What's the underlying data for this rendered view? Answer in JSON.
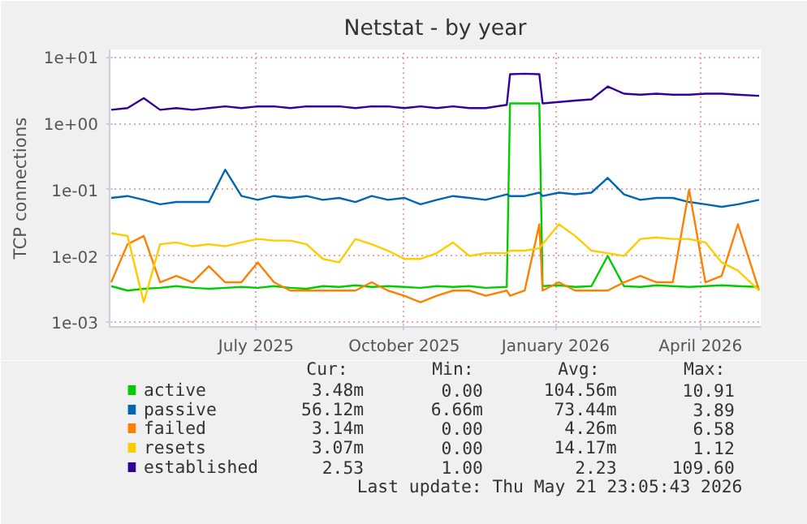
{
  "chart_data": {
    "type": "line",
    "title": "Netstat - by year",
    "ylabel": "TCP connections",
    "x": [
      "2025-04-17",
      "2025-04-27",
      "2025-05-07",
      "2025-05-17",
      "2025-05-27",
      "2025-06-06",
      "2025-06-16",
      "2025-06-26",
      "2025-07-06",
      "2025-07-16",
      "2025-07-26",
      "2025-08-05",
      "2025-08-15",
      "2025-08-25",
      "2025-09-04",
      "2025-09-14",
      "2025-09-24",
      "2025-10-04",
      "2025-10-14",
      "2025-10-24",
      "2025-11-03",
      "2025-11-13",
      "2025-11-23",
      "2025-12-03",
      "2025-12-16",
      "2025-12-18",
      "2025-12-27",
      "2026-01-05",
      "2026-01-07",
      "2026-01-17",
      "2026-01-27",
      "2026-02-06",
      "2026-02-16",
      "2026-02-26",
      "2026-03-08",
      "2026-03-18",
      "2026-03-28",
      "2026-04-07",
      "2026-04-17",
      "2026-04-27",
      "2026-05-07",
      "2026-05-20"
    ],
    "series": [
      {
        "name": "active",
        "color": "#00cc00",
        "values": [
          0.0035,
          0.003,
          0.0032,
          0.0033,
          0.0035,
          0.0033,
          0.0032,
          0.0033,
          0.0034,
          0.0033,
          0.0035,
          0.0033,
          0.0032,
          0.0035,
          0.0034,
          0.0036,
          0.0034,
          0.0035,
          0.0034,
          0.0033,
          0.0035,
          0.0034,
          0.0035,
          0.0033,
          0.0034,
          2.0,
          2.0,
          2.0,
          0.0035,
          0.0036,
          0.0034,
          0.0035,
          0.01,
          0.0035,
          0.0034,
          0.0036,
          0.0035,
          0.0034,
          0.0035,
          0.0036,
          0.0035,
          0.0034
        ]
      },
      {
        "name": "passive",
        "color": "#0066b3",
        "values": [
          0.075,
          0.08,
          0.07,
          0.06,
          0.065,
          0.065,
          0.065,
          0.2,
          0.08,
          0.07,
          0.08,
          0.075,
          0.08,
          0.07,
          0.075,
          0.065,
          0.08,
          0.07,
          0.075,
          0.06,
          0.07,
          0.08,
          0.075,
          0.07,
          0.085,
          0.08,
          0.08,
          0.09,
          0.08,
          0.09,
          0.085,
          0.09,
          0.15,
          0.085,
          0.07,
          0.075,
          0.075,
          0.065,
          0.06,
          0.055,
          0.06,
          0.07
        ]
      },
      {
        "name": "failed",
        "color": "#ff8000",
        "values": [
          0.004,
          0.015,
          0.02,
          0.004,
          0.005,
          0.004,
          0.007,
          0.004,
          0.004,
          0.008,
          0.004,
          0.003,
          0.003,
          0.003,
          0.003,
          0.003,
          0.004,
          0.003,
          0.0025,
          0.002,
          0.0025,
          0.003,
          0.003,
          0.0025,
          0.003,
          0.0025,
          0.003,
          0.03,
          0.003,
          0.004,
          0.003,
          0.003,
          0.003,
          0.004,
          0.005,
          0.004,
          0.004,
          0.1,
          0.004,
          0.005,
          0.03,
          0.003
        ]
      },
      {
        "name": "resets",
        "color": "#ffcc00",
        "values": [
          0.022,
          0.02,
          0.002,
          0.015,
          0.016,
          0.014,
          0.015,
          0.014,
          0.016,
          0.018,
          0.017,
          0.017,
          0.015,
          0.009,
          0.008,
          0.018,
          0.015,
          0.012,
          0.009,
          0.009,
          0.011,
          0.016,
          0.01,
          0.011,
          0.011,
          0.012,
          0.012,
          0.013,
          0.015,
          0.03,
          0.02,
          0.012,
          0.011,
          0.01,
          0.018,
          0.019,
          0.018,
          0.018,
          0.016,
          0.008,
          0.006,
          0.003
        ]
      },
      {
        "name": "established",
        "color": "#330099",
        "values": [
          1.6,
          1.7,
          2.4,
          1.6,
          1.7,
          1.6,
          1.7,
          1.8,
          1.7,
          1.8,
          1.8,
          1.7,
          1.8,
          1.8,
          1.8,
          1.7,
          1.8,
          1.8,
          1.7,
          1.8,
          1.7,
          1.8,
          1.7,
          1.7,
          1.9,
          5.5,
          5.6,
          5.5,
          2.0,
          2.1,
          2.2,
          2.3,
          3.6,
          2.8,
          2.7,
          2.8,
          2.7,
          2.7,
          2.8,
          2.8,
          2.7,
          2.6
        ]
      }
    ],
    "xlim": [
      "2025-04-16",
      "2026-05-21"
    ],
    "xticks": [
      {
        "value": "2025-07-15",
        "label": "July 2025"
      },
      {
        "value": "2025-10-14",
        "label": "October 2025"
      },
      {
        "value": "2026-01-15",
        "label": "January 2026"
      },
      {
        "value": "2026-04-14",
        "label": "April 2026"
      }
    ],
    "ylim": [
      0.00085,
      13
    ],
    "yticks": [
      {
        "value": 0.001,
        "label": "1e-03"
      },
      {
        "value": 0.01,
        "label": "1e-02"
      },
      {
        "value": 0.1,
        "label": "1e-01"
      },
      {
        "value": 1,
        "label": "1e+00"
      },
      {
        "value": 10,
        "label": "1e+01"
      }
    ],
    "log": "y",
    "grid": true,
    "legend": "bottom",
    "annotations": [
      "Cur:",
      "Min:",
      "Avg:",
      "Max:",
      "3.48m",
      "0.00",
      "104.56m",
      "10.91",
      "56.12m",
      "6.66m",
      "73.44m",
      "3.89",
      "3.14m",
      "0.00",
      "4.26m",
      "6.58",
      "3.07m",
      "0.00",
      "14.17m",
      "1.12",
      "2.53",
      "1.00",
      "2.23",
      "109.60",
      "Last update: Thu May 21 23:05:43 2026"
    ]
  }
}
